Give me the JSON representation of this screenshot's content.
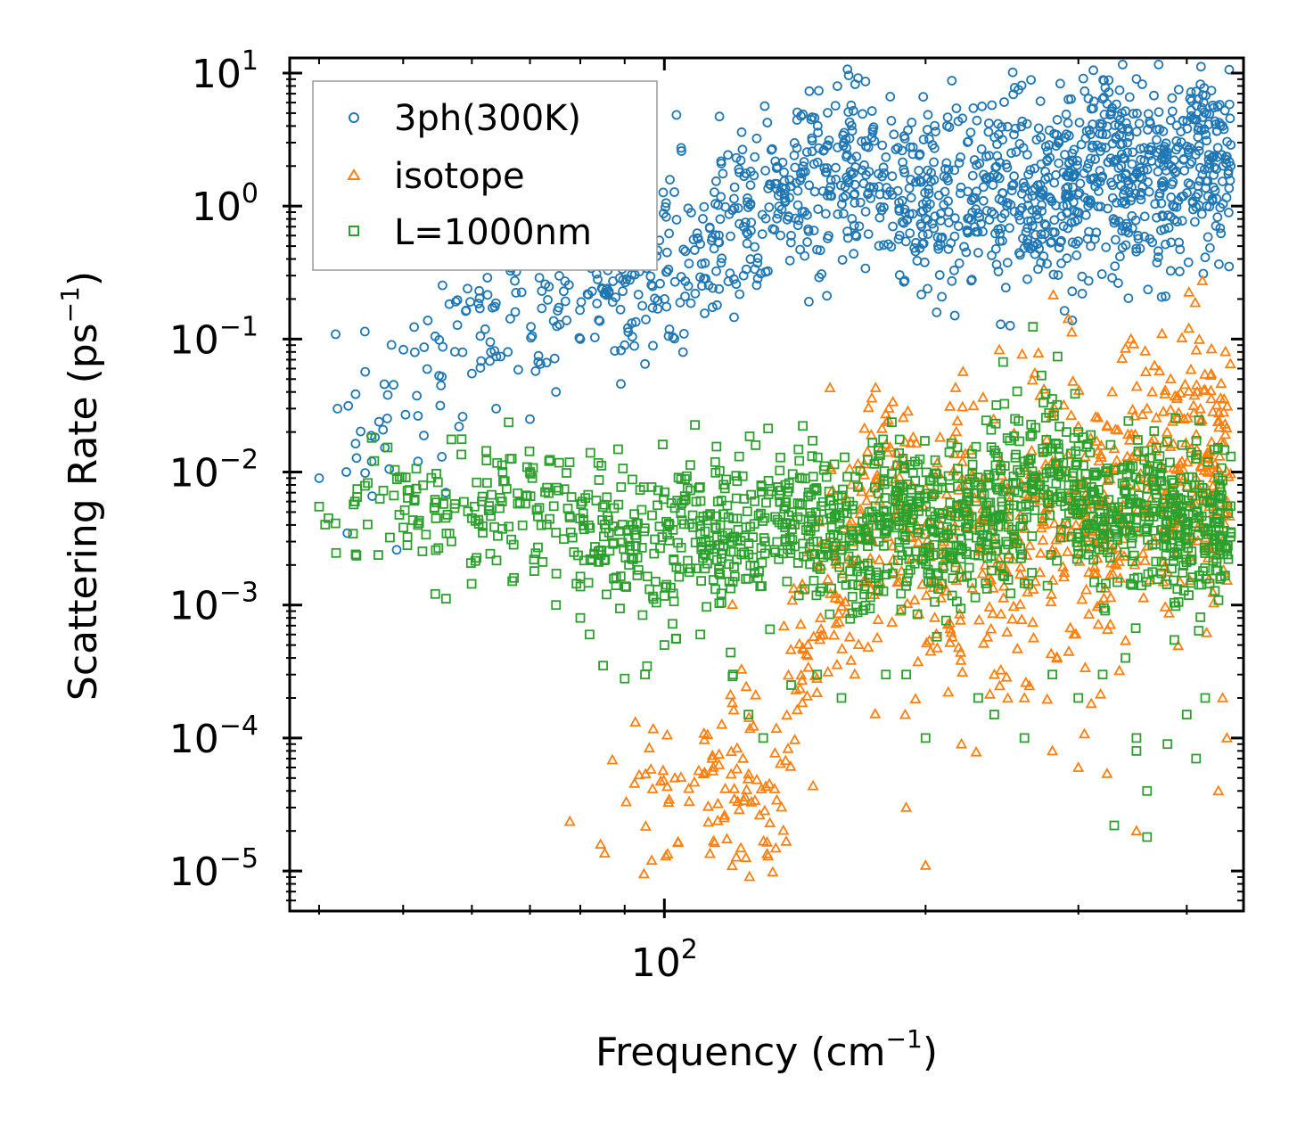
{
  "chart_data": {
    "type": "scatter",
    "xscale": "log",
    "yscale": "log",
    "xlabel": "Frequency (cm",
    "xlabel_sup": "−1",
    "xlabel_end": ")",
    "ylabel": "Scattering Rate (ps",
    "ylabel_sup": "−1",
    "ylabel_end": ")",
    "xlim": [
      37,
      465
    ],
    "ylim": [
      5e-06,
      13
    ],
    "x_ticks": [
      {
        "value": 100,
        "base": "10",
        "exp": "2"
      }
    ],
    "y_ticks": [
      {
        "value": 1e-05,
        "base": "10",
        "exp": "−5"
      },
      {
        "value": 0.0001,
        "base": "10",
        "exp": "−4"
      },
      {
        "value": 0.001,
        "base": "10",
        "exp": "−3"
      },
      {
        "value": 0.01,
        "base": "10",
        "exp": "−2"
      },
      {
        "value": 0.1,
        "base": "10",
        "exp": "−1"
      },
      {
        "value": 1,
        "base": "10",
        "exp": "0"
      },
      {
        "value": 10,
        "base": "10",
        "exp": "1"
      }
    ],
    "legend_position": "top-left",
    "series": [
      {
        "name": "3ph(300K)",
        "marker": "circle",
        "color": "#1f77b4",
        "trend": [
          [
            40,
            0.009
          ],
          [
            45,
            0.02
          ],
          [
            50,
            0.05
          ],
          [
            55,
            0.08
          ],
          [
            60,
            0.13
          ],
          [
            65,
            0.2
          ],
          [
            70,
            0.26
          ],
          [
            75,
            0.3
          ],
          [
            80,
            0.3
          ],
          [
            85,
            0.3
          ],
          [
            90,
            0.22
          ],
          [
            95,
            0.28
          ],
          [
            100,
            0.35
          ],
          [
            110,
            0.45
          ],
          [
            120,
            0.65
          ],
          [
            130,
            0.9
          ],
          [
            140,
            1.2
          ],
          [
            150,
            1.4
          ],
          [
            160,
            1.6
          ],
          [
            170,
            1.5
          ],
          [
            180,
            1.2
          ],
          [
            190,
            1.0
          ],
          [
            200,
            1.1
          ],
          [
            220,
            1.2
          ],
          [
            250,
            1.3
          ],
          [
            280,
            1.3
          ],
          [
            300,
            1.4
          ],
          [
            320,
            2.2
          ],
          [
            340,
            1.7
          ],
          [
            360,
            1.5
          ],
          [
            380,
            1.8
          ],
          [
            400,
            2.0
          ],
          [
            420,
            2.5
          ],
          [
            440,
            2.2
          ],
          [
            450,
            1.8
          ]
        ],
        "spread": 0.35,
        "count": 1400,
        "extra_points": [
          [
            40,
            0.009
          ],
          [
            42,
            0.03
          ],
          [
            43,
            0.01
          ],
          [
            46,
            0.012
          ],
          [
            48,
            0.038
          ],
          [
            52,
            0.012
          ],
          [
            55,
            0.053
          ],
          [
            56,
            0.007
          ],
          [
            58,
            0.022
          ],
          [
            60,
            0.055
          ],
          [
            63,
            0.095
          ],
          [
            64,
            0.03
          ],
          [
            66,
            0.08
          ],
          [
            70,
            0.025
          ],
          [
            72,
            0.065
          ],
          [
            75,
            0.04
          ],
          [
            80,
            0.1
          ],
          [
            90,
            0.09
          ],
          [
            95,
            0.065
          ],
          [
            115,
            0.18
          ],
          [
            140,
            0.6
          ],
          [
            310,
            0.5
          ],
          [
            430,
            5.5
          ],
          [
            440,
            4.0
          ]
        ]
      },
      {
        "name": "isotope",
        "marker": "triangle",
        "color": "#ff7f0e",
        "trend": [
          [
            75,
            1.15e-05
          ],
          [
            78,
            1.1e-05
          ],
          [
            90,
            1.2e-05
          ],
          [
            92,
            1.4e-05
          ],
          [
            100,
            1.1e-05
          ],
          [
            115,
            3e-05
          ],
          [
            120,
            5.5e-05
          ],
          [
            125,
            5e-05
          ],
          [
            130,
            3e-05
          ],
          [
            135,
            4e-05
          ],
          [
            145,
            0.0004
          ],
          [
            150,
            0.002
          ],
          [
            155,
            0.003
          ],
          [
            160,
            0.002
          ],
          [
            165,
            0.0015
          ],
          [
            170,
            0.003
          ],
          [
            180,
            0.004
          ],
          [
            190,
            0.003
          ],
          [
            200,
            0.002
          ],
          [
            210,
            0.003
          ],
          [
            220,
            0.004
          ],
          [
            240,
            0.003
          ],
          [
            250,
            0.003
          ],
          [
            280,
            0.004
          ],
          [
            300,
            0.005
          ],
          [
            320,
            0.003
          ],
          [
            340,
            0.008
          ],
          [
            360,
            0.01
          ],
          [
            380,
            0.006
          ],
          [
            400,
            0.008
          ],
          [
            420,
            0.012
          ],
          [
            440,
            0.008
          ],
          [
            450,
            0.005
          ]
        ],
        "spread": 0.55,
        "count": 900,
        "extra_points": [
          [
            170,
            0.0095
          ],
          [
            170,
            0.0115
          ],
          [
            185,
            0.006
          ],
          [
            200,
            0.0075
          ],
          [
            215,
            0.018
          ],
          [
            245,
            0.008
          ],
          [
            280,
            0.012
          ],
          [
            300,
            0.022
          ],
          [
            310,
            0.018
          ],
          [
            330,
            0.015
          ],
          [
            340,
            0.085
          ],
          [
            345,
            0.1
          ],
          [
            360,
            0.03
          ],
          [
            365,
            0.04
          ],
          [
            395,
            0.012
          ],
          [
            405,
            0.015
          ],
          [
            410,
            0.009
          ],
          [
            420,
            0.006
          ],
          [
            430,
            0.005
          ],
          [
            440,
            0.0002
          ],
          [
            445,
            0.0001
          ],
          [
            435,
            4e-05
          ],
          [
            350,
            2e-05
          ],
          [
            300,
            6e-05
          ],
          [
            280,
            8e-05
          ],
          [
            260,
            0.0002
          ],
          [
            240,
            0.0003
          ],
          [
            220,
            9e-05
          ],
          [
            200,
            1.1e-05
          ],
          [
            190,
            3e-05
          ]
        ]
      },
      {
        "name": "L=1000nm",
        "marker": "square",
        "color": "#2ca02c",
        "trend": [
          [
            40,
            0.0055
          ],
          [
            45,
            0.006
          ],
          [
            50,
            0.005
          ],
          [
            55,
            0.0055
          ],
          [
            60,
            0.005
          ],
          [
            65,
            0.005
          ],
          [
            70,
            0.005
          ],
          [
            75,
            0.0045
          ],
          [
            80,
            0.004
          ],
          [
            85,
            0.0035
          ],
          [
            90,
            0.0035
          ],
          [
            95,
            0.003
          ],
          [
            100,
            0.003
          ],
          [
            110,
            0.0035
          ],
          [
            120,
            0.003
          ],
          [
            130,
            0.004
          ],
          [
            140,
            0.0045
          ],
          [
            150,
            0.004
          ],
          [
            160,
            0.003
          ],
          [
            170,
            0.003
          ],
          [
            180,
            0.004
          ],
          [
            190,
            0.005
          ],
          [
            200,
            0.004
          ],
          [
            210,
            0.003
          ],
          [
            220,
            0.004
          ],
          [
            240,
            0.005
          ],
          [
            260,
            0.008
          ],
          [
            280,
            0.012
          ],
          [
            300,
            0.006
          ],
          [
            320,
            0.004
          ],
          [
            340,
            0.005
          ],
          [
            360,
            0.006
          ],
          [
            380,
            0.005
          ],
          [
            400,
            0.004
          ],
          [
            420,
            0.004
          ],
          [
            440,
            0.005
          ],
          [
            450,
            0.003
          ]
        ],
        "spread": 0.3,
        "count": 1500,
        "extra_points": [
          [
            40,
            0.0055
          ],
          [
            41,
            0.0045
          ],
          [
            44,
            0.006
          ],
          [
            47,
            0.0063
          ],
          [
            52,
            0.004
          ],
          [
            56,
            0.0068
          ],
          [
            60,
            0.0045
          ],
          [
            65,
            0.006
          ],
          [
            70,
            0.01
          ],
          [
            75,
            0.001
          ],
          [
            80,
            0.0008
          ],
          [
            82,
            0.0006
          ],
          [
            85,
            0.00035
          ],
          [
            90,
            0.00028
          ],
          [
            95,
            0.0003
          ],
          [
            100,
            0.0005
          ],
          [
            110,
            0.0006
          ],
          [
            120,
            0.0003
          ],
          [
            125,
            0.00015
          ],
          [
            130,
            0.0001
          ],
          [
            140,
            0.00025
          ],
          [
            150,
            0.0003
          ],
          [
            160,
            0.0002
          ],
          [
            170,
            0.0012
          ],
          [
            180,
            0.0003
          ],
          [
            190,
            0.0003
          ],
          [
            200,
            0.0001
          ],
          [
            230,
            0.0002
          ],
          [
            240,
            0.00015
          ],
          [
            260,
            0.0001
          ],
          [
            280,
            0.0003
          ],
          [
            300,
            0.0002
          ],
          [
            320,
            0.0003
          ],
          [
            340,
            0.0004
          ],
          [
            350,
            0.0001
          ],
          [
            350,
            8e-05
          ],
          [
            360,
            4e-05
          ],
          [
            380,
            9e-05
          ],
          [
            400,
            0.00015
          ],
          [
            410,
            7e-05
          ],
          [
            420,
            0.0002
          ],
          [
            360,
            1.8e-05
          ],
          [
            330,
            2.2e-05
          ],
          [
            300,
            0.02
          ],
          [
            310,
            0.019
          ],
          [
            280,
            0.015
          ],
          [
            260,
            0.012
          ]
        ]
      }
    ]
  }
}
